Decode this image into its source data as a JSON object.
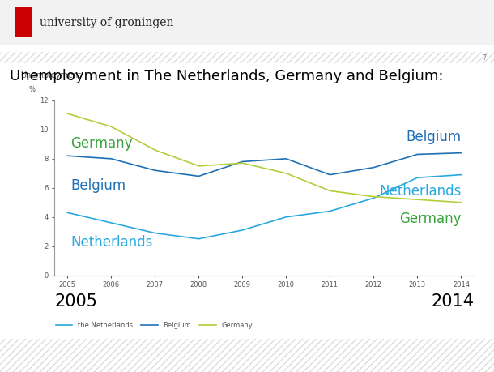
{
  "header": {
    "logo_text": "university of groningen",
    "page": "7"
  },
  "slide_title": "Unemployment in The Netherlands, Germany and Belgium:",
  "chart_data": {
    "type": "line",
    "y_label": "Unemployment",
    "y_unit": "%",
    "categories": [
      "2005",
      "2006",
      "2007",
      "2008",
      "2009",
      "2010",
      "2011",
      "2012",
      "2013",
      "2014"
    ],
    "ylim": [
      0,
      12
    ],
    "yticks": [
      0,
      2,
      4,
      6,
      8,
      10,
      12
    ],
    "grid": false,
    "legend": "lower left",
    "series": [
      {
        "name": "the Netherlands",
        "inline_label": "Netherlands",
        "color": "#29a8e0",
        "inline_color": "#29a8e0",
        "values": [
          4.3,
          3.6,
          2.9,
          2.5,
          3.1,
          4.0,
          4.4,
          5.3,
          6.7,
          6.9
        ]
      },
      {
        "name": "Belgium",
        "inline_label": "Belgium",
        "color": "#1f6fb5",
        "inline_color": "#1f6fb5",
        "values": [
          8.2,
          8.0,
          7.2,
          6.8,
          7.8,
          8.0,
          6.9,
          7.4,
          8.3,
          8.4
        ]
      },
      {
        "name": "Germany",
        "inline_label": "Germany",
        "color": "#b5cc3a",
        "inline_color": "#3aa23a",
        "values": [
          11.1,
          10.2,
          8.6,
          7.5,
          7.7,
          7.0,
          5.8,
          5.4,
          5.2,
          5.0
        ]
      }
    ]
  }
}
